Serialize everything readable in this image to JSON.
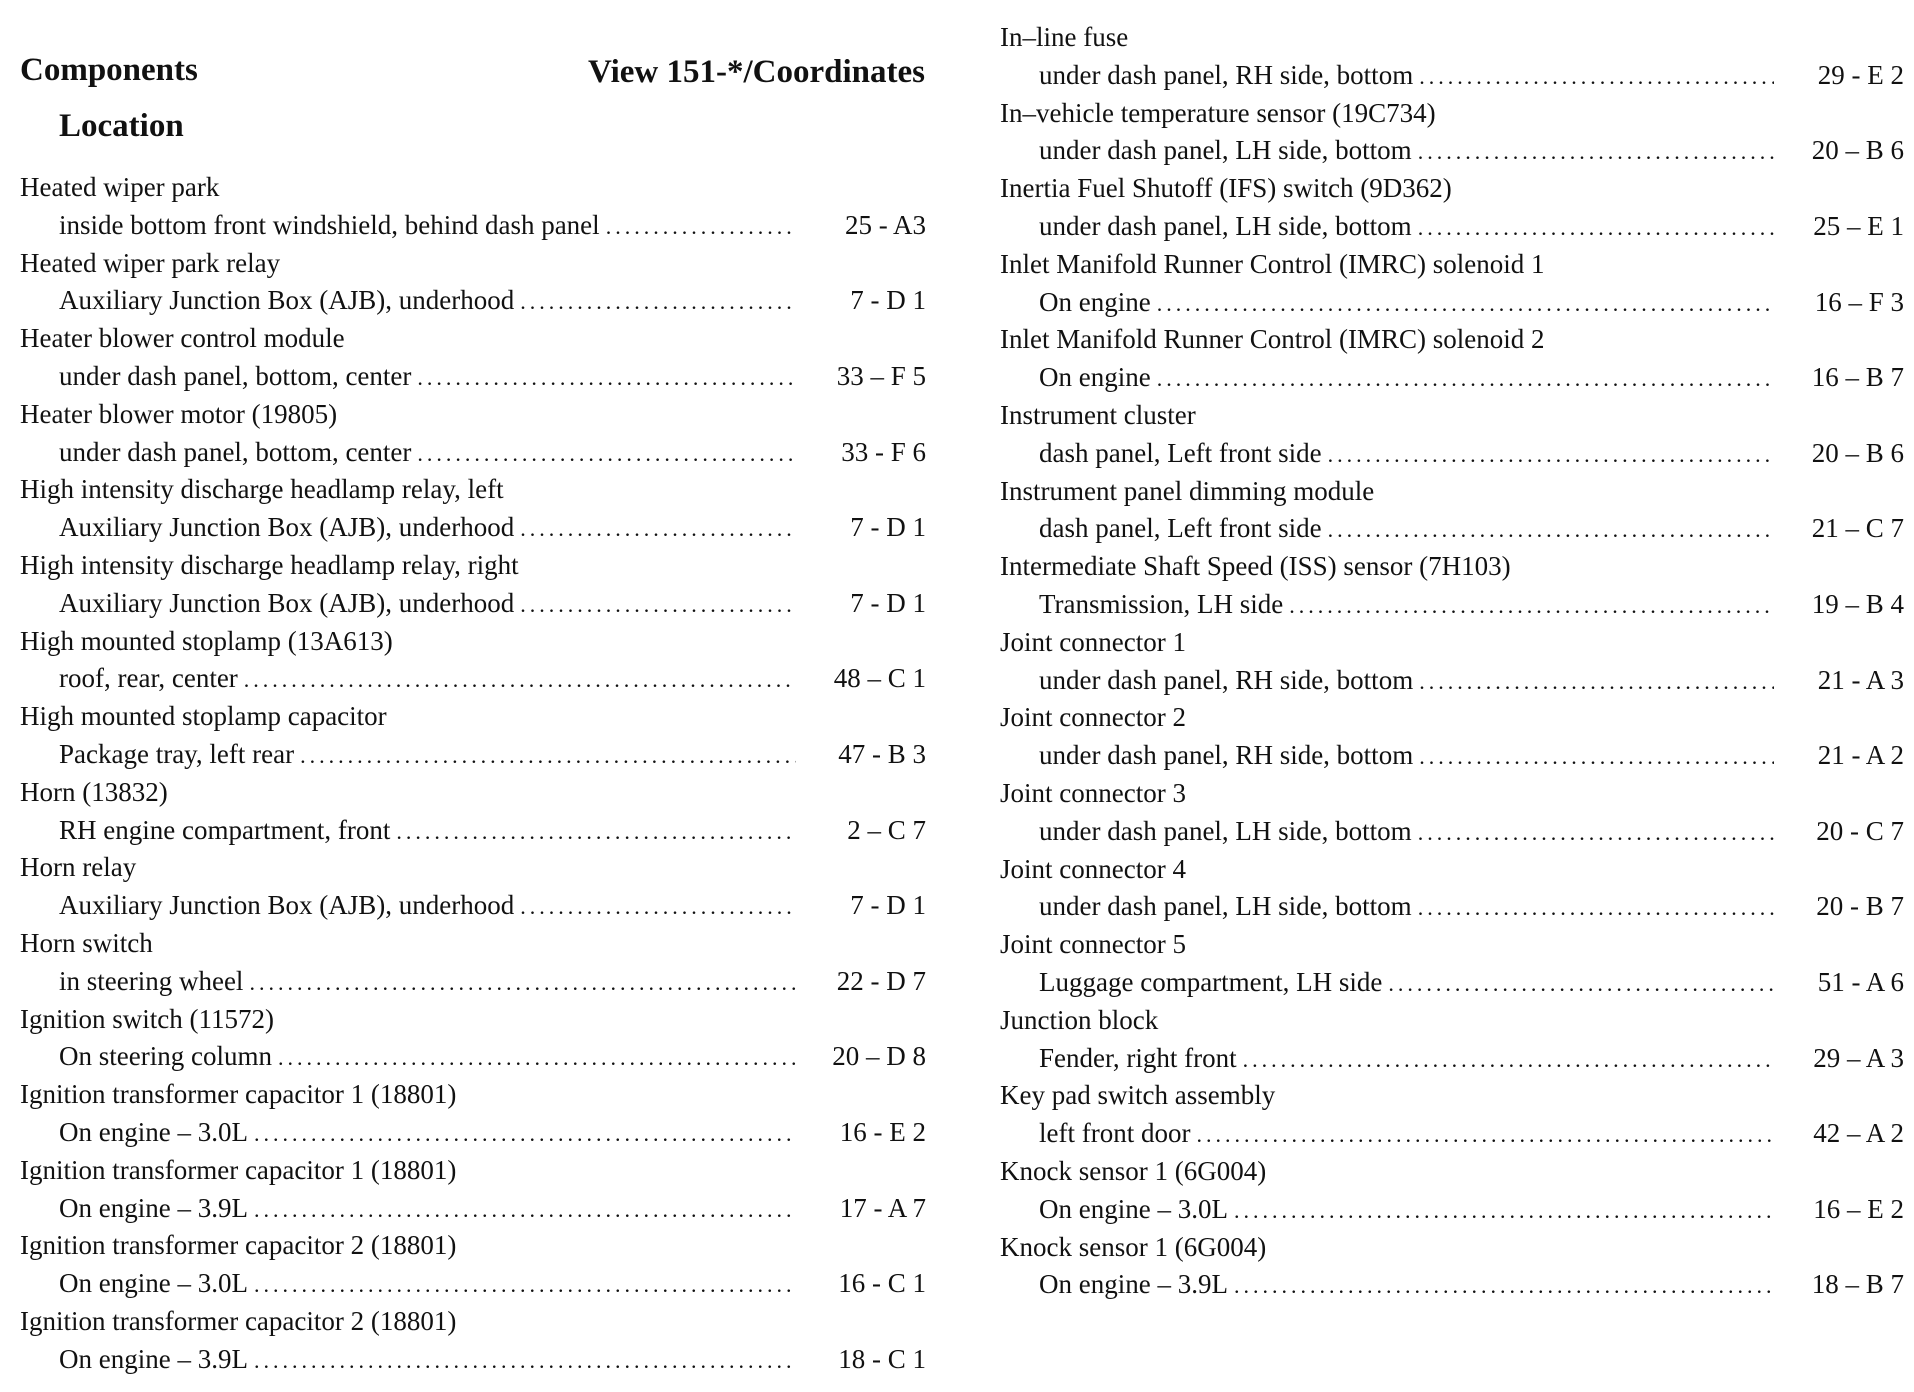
{
  "header": {
    "components": "Components",
    "view": "View 151-*/Coordinates",
    "location": "Location"
  },
  "left": [
    {
      "name": "Heated wiper park",
      "location": "inside bottom front windshield, behind dash panel",
      "code": "25 - A3"
    },
    {
      "name": "Heated wiper park relay",
      "location": "Auxiliary Junction Box (AJB), underhood",
      "code": "7 - D 1"
    },
    {
      "name": "Heater blower control module",
      "location": "under dash panel, bottom, center",
      "code": "33 – F 5"
    },
    {
      "name": "Heater blower motor (19805)",
      "location": "under dash panel, bottom, center",
      "code": "33 - F 6"
    },
    {
      "name": "High intensity discharge headlamp relay, left",
      "location": "Auxiliary Junction Box (AJB), underhood",
      "code": "7 - D 1"
    },
    {
      "name": "High intensity discharge headlamp relay, right",
      "location": "Auxiliary Junction Box (AJB), underhood",
      "code": "7 - D 1"
    },
    {
      "name": "High mounted stoplamp (13A613)",
      "location": "roof, rear, center",
      "code": "48 – C 1"
    },
    {
      "name": "High mounted stoplamp capacitor",
      "location": "Package tray, left rear",
      "code": "47 - B 3"
    },
    {
      "name": "Horn (13832)",
      "location": "RH engine compartment, front",
      "code": "2 – C 7"
    },
    {
      "name": "Horn relay",
      "location": "Auxiliary Junction Box (AJB), underhood",
      "code": "7 - D 1"
    },
    {
      "name": "Horn switch",
      "location": "in steering wheel",
      "code": "22 - D 7"
    },
    {
      "name": "Ignition switch (11572)",
      "location": "On steering column",
      "code": "20 – D 8"
    },
    {
      "name": "Ignition transformer capacitor 1 (18801)",
      "location": "On engine – 3.0L",
      "code": "16 - E 2"
    },
    {
      "name": "Ignition transformer capacitor 1 (18801)",
      "location": "On engine – 3.9L",
      "code": "17 - A 7"
    },
    {
      "name": "Ignition transformer capacitor 2 (18801)",
      "location": "On engine – 3.0L",
      "code": "16 - C 1"
    },
    {
      "name": "Ignition transformer capacitor 2 (18801)",
      "location": "On engine – 3.9L",
      "code": "18 - C 1"
    }
  ],
  "right": [
    {
      "name": "In–line fuse",
      "location": "under dash panel, RH side, bottom",
      "code": "29 - E 2"
    },
    {
      "name": "In–vehicle temperature sensor (19C734)",
      "location": "under dash panel, LH side, bottom",
      "code": "20 – B 6"
    },
    {
      "name": "Inertia Fuel Shutoff (IFS) switch (9D362)",
      "location": "under dash panel, LH side, bottom",
      "code": "25 – E 1"
    },
    {
      "name": "Inlet Manifold Runner Control (IMRC) solenoid 1",
      "location": "On engine",
      "code": "16 – F 3"
    },
    {
      "name": "Inlet Manifold Runner Control (IMRC) solenoid 2",
      "location": "On engine",
      "code": "16 – B 7"
    },
    {
      "name": "Instrument cluster",
      "location": "dash panel, Left front side",
      "code": "20 – B 6"
    },
    {
      "name": "Instrument panel dimming module",
      "location": "dash panel, Left front side",
      "code": "21 – C 7"
    },
    {
      "name": "Intermediate Shaft Speed (ISS) sensor (7H103)",
      "location": "Transmission, LH side",
      "code": "19 – B 4"
    },
    {
      "name": "Joint connector 1",
      "location": "under dash panel, RH side, bottom",
      "code": "21 - A 3"
    },
    {
      "name": "Joint connector 2",
      "location": "under dash panel, RH side, bottom",
      "code": "21 - A 2"
    },
    {
      "name": "Joint connector 3",
      "location": "under dash panel, LH side, bottom",
      "code": "20 - C 7"
    },
    {
      "name": "Joint connector 4",
      "location": "under dash panel, LH side, bottom",
      "code": "20 - B 7"
    },
    {
      "name": "Joint connector 5",
      "location": "Luggage compartment, LH side",
      "code": "51 - A 6"
    },
    {
      "name": "Junction block",
      "location": "Fender, right front",
      "code": "29 – A 3"
    },
    {
      "name": "Key pad switch assembly",
      "location": "left front door",
      "code": "42 – A 2"
    },
    {
      "name": "Knock sensor 1 (6G004)",
      "location": "On engine – 3.0L",
      "code": "16 – E 2"
    },
    {
      "name": "Knock sensor 1 (6G004)",
      "location": "On engine – 3.9L",
      "code": "18 – B 7"
    }
  ]
}
